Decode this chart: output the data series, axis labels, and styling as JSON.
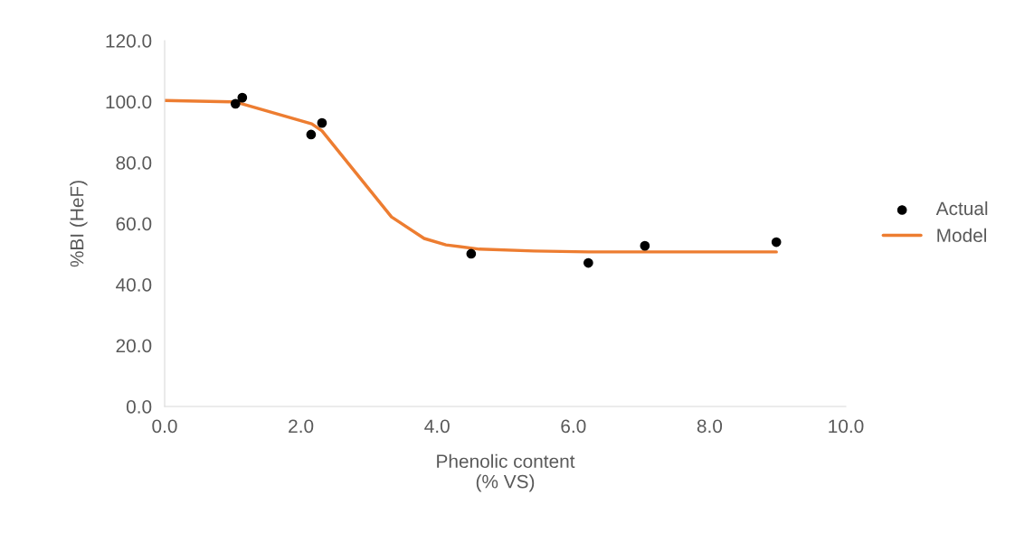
{
  "chart_data": {
    "type": "scatter",
    "xlabel": "Phenolic content\n(% VS)",
    "ylabel": "%BI (HeF)",
    "xlim": [
      0,
      10
    ],
    "xticks": [
      {
        "value": 0,
        "label": "0.0"
      },
      {
        "value": 2,
        "label": "2.0"
      },
      {
        "value": 4,
        "label": "4.0"
      },
      {
        "value": 6,
        "label": "6.0"
      },
      {
        "value": 8,
        "label": "8.0"
      },
      {
        "value": 10,
        "label": "10.0"
      }
    ],
    "ylim": [
      0,
      120
    ],
    "yticks": [
      {
        "value": 0,
        "label": "0.0"
      },
      {
        "value": 20,
        "label": "20.0"
      },
      {
        "value": 40,
        "label": "40.0"
      },
      {
        "value": 60,
        "label": "60.0"
      },
      {
        "value": 80,
        "label": "80.0"
      },
      {
        "value": 100,
        "label": "100.0"
      },
      {
        "value": 120,
        "label": "120.0"
      }
    ],
    "grid": false,
    "legend": "right",
    "series": [
      {
        "name": "Actual",
        "color": "#000000",
        "marker": "circle",
        "x": [
          1.04,
          1.14,
          2.15,
          2.31,
          4.5,
          6.22,
          7.05,
          8.98
        ],
        "values": [
          99.3,
          101.3,
          89.2,
          93.0,
          50.1,
          47.1,
          52.7,
          53.9
        ]
      },
      {
        "name": "Model",
        "type": "line",
        "color": "#ed7d31",
        "marker": "none",
        "x": [
          0,
          1.04,
          2.16,
          2.31,
          3.33,
          3.81,
          4.13,
          4.62,
          5.42,
          6.22,
          8.98
        ],
        "values": [
          100.4,
          99.9,
          92.7,
          90.4,
          62.2,
          55.1,
          53.0,
          51.6,
          51.0,
          50.7,
          50.7
        ]
      }
    ]
  }
}
